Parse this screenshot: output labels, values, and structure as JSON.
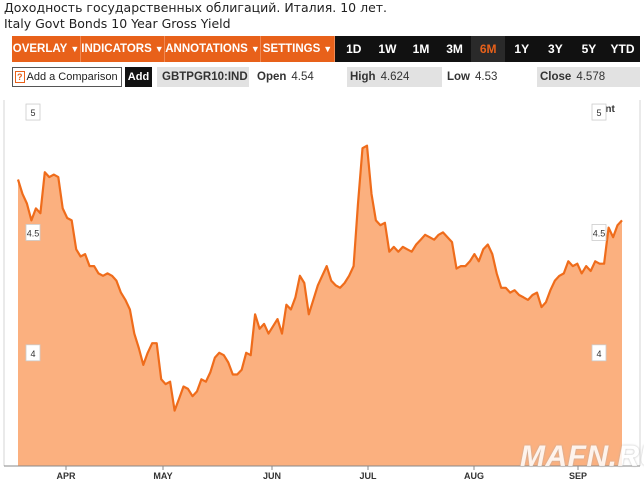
{
  "header": {
    "title_ru": "Доходность государственных облигаций. Италия. 10 лет.",
    "title_en": "Italy Govt Bonds 10 Year Gross Yield"
  },
  "toolbar": {
    "menus": [
      {
        "label": "OVERLAY",
        "icon": "triangle-down-icon"
      },
      {
        "label": "INDICATORS",
        "icon": "triangle-down-icon"
      },
      {
        "label": "ANNOTATIONS",
        "icon": "triangle-down-icon"
      },
      {
        "label": "SETTINGS",
        "icon": "triangle-down-icon"
      }
    ],
    "ranges": [
      "1D",
      "1W",
      "1M",
      "3M",
      "6M",
      "1Y",
      "3Y",
      "5Y",
      "YTD"
    ],
    "active_range": "6M",
    "accent_color": "#e8611a"
  },
  "infobar": {
    "compare_icon": "?",
    "compare_label": "Add a Comparison",
    "add_label": "Add",
    "ticker": "GBTPGR10:IND",
    "open_label": "Open",
    "open_value": "4.54",
    "high_label": "High",
    "high_value": "4.624",
    "low_label": "Low",
    "low_value": "4.53",
    "close_label": "Close",
    "close_value": "4.578"
  },
  "print_label": "Print",
  "watermark": "MAFN.RU",
  "chart_data": {
    "type": "area",
    "title": "",
    "xlabel": "",
    "ylabel": "",
    "ylim": [
      3.53,
      5.05
    ],
    "y_ticks": [
      "5",
      "4.5",
      "4"
    ],
    "x_ticks": [
      "APR",
      "MAY",
      "JUN",
      "JUL",
      "AUG",
      "SEP"
    ],
    "grid": false,
    "fill_color": "#fbb07f",
    "line_color": "#ef6c1b",
    "series": [
      {
        "values": [
          4.72,
          4.66,
          4.62,
          4.55,
          4.6,
          4.58,
          4.75,
          4.73,
          4.74,
          4.73,
          4.6,
          4.56,
          4.55,
          4.43,
          4.4,
          4.41,
          4.36,
          4.36,
          4.33,
          4.32,
          4.33,
          4.32,
          4.3,
          4.25,
          4.22,
          4.18,
          4.08,
          4.02,
          3.95,
          4.0,
          4.04,
          4.04,
          3.89,
          3.87,
          3.88,
          3.76,
          3.81,
          3.86,
          3.85,
          3.82,
          3.84,
          3.89,
          3.88,
          3.92,
          3.98,
          4.0,
          3.99,
          3.96,
          3.91,
          3.91,
          3.93,
          4.0,
          3.99,
          4.16,
          4.1,
          4.12,
          4.08,
          4.11,
          4.14,
          4.08,
          4.2,
          4.18,
          4.23,
          4.32,
          4.29,
          4.16,
          4.22,
          4.28,
          4.32,
          4.36,
          4.3,
          4.28,
          4.27,
          4.29,
          4.32,
          4.36,
          4.62,
          4.85,
          4.86,
          4.66,
          4.55,
          4.53,
          4.54,
          4.42,
          4.44,
          4.42,
          4.44,
          4.43,
          4.42,
          4.45,
          4.47,
          4.49,
          4.48,
          4.47,
          4.49,
          4.5,
          4.48,
          4.46,
          4.35,
          4.36,
          4.36,
          4.38,
          4.41,
          4.38,
          4.43,
          4.45,
          4.41,
          4.33,
          4.27,
          4.27,
          4.25,
          4.26,
          4.24,
          4.23,
          4.22,
          4.24,
          4.25,
          4.19,
          4.21,
          4.26,
          4.3,
          4.32,
          4.33,
          4.38,
          4.36,
          4.37,
          4.33,
          4.36,
          4.34,
          4.38,
          4.37,
          4.37,
          4.52,
          4.48,
          4.53,
          4.55
        ]
      }
    ]
  }
}
